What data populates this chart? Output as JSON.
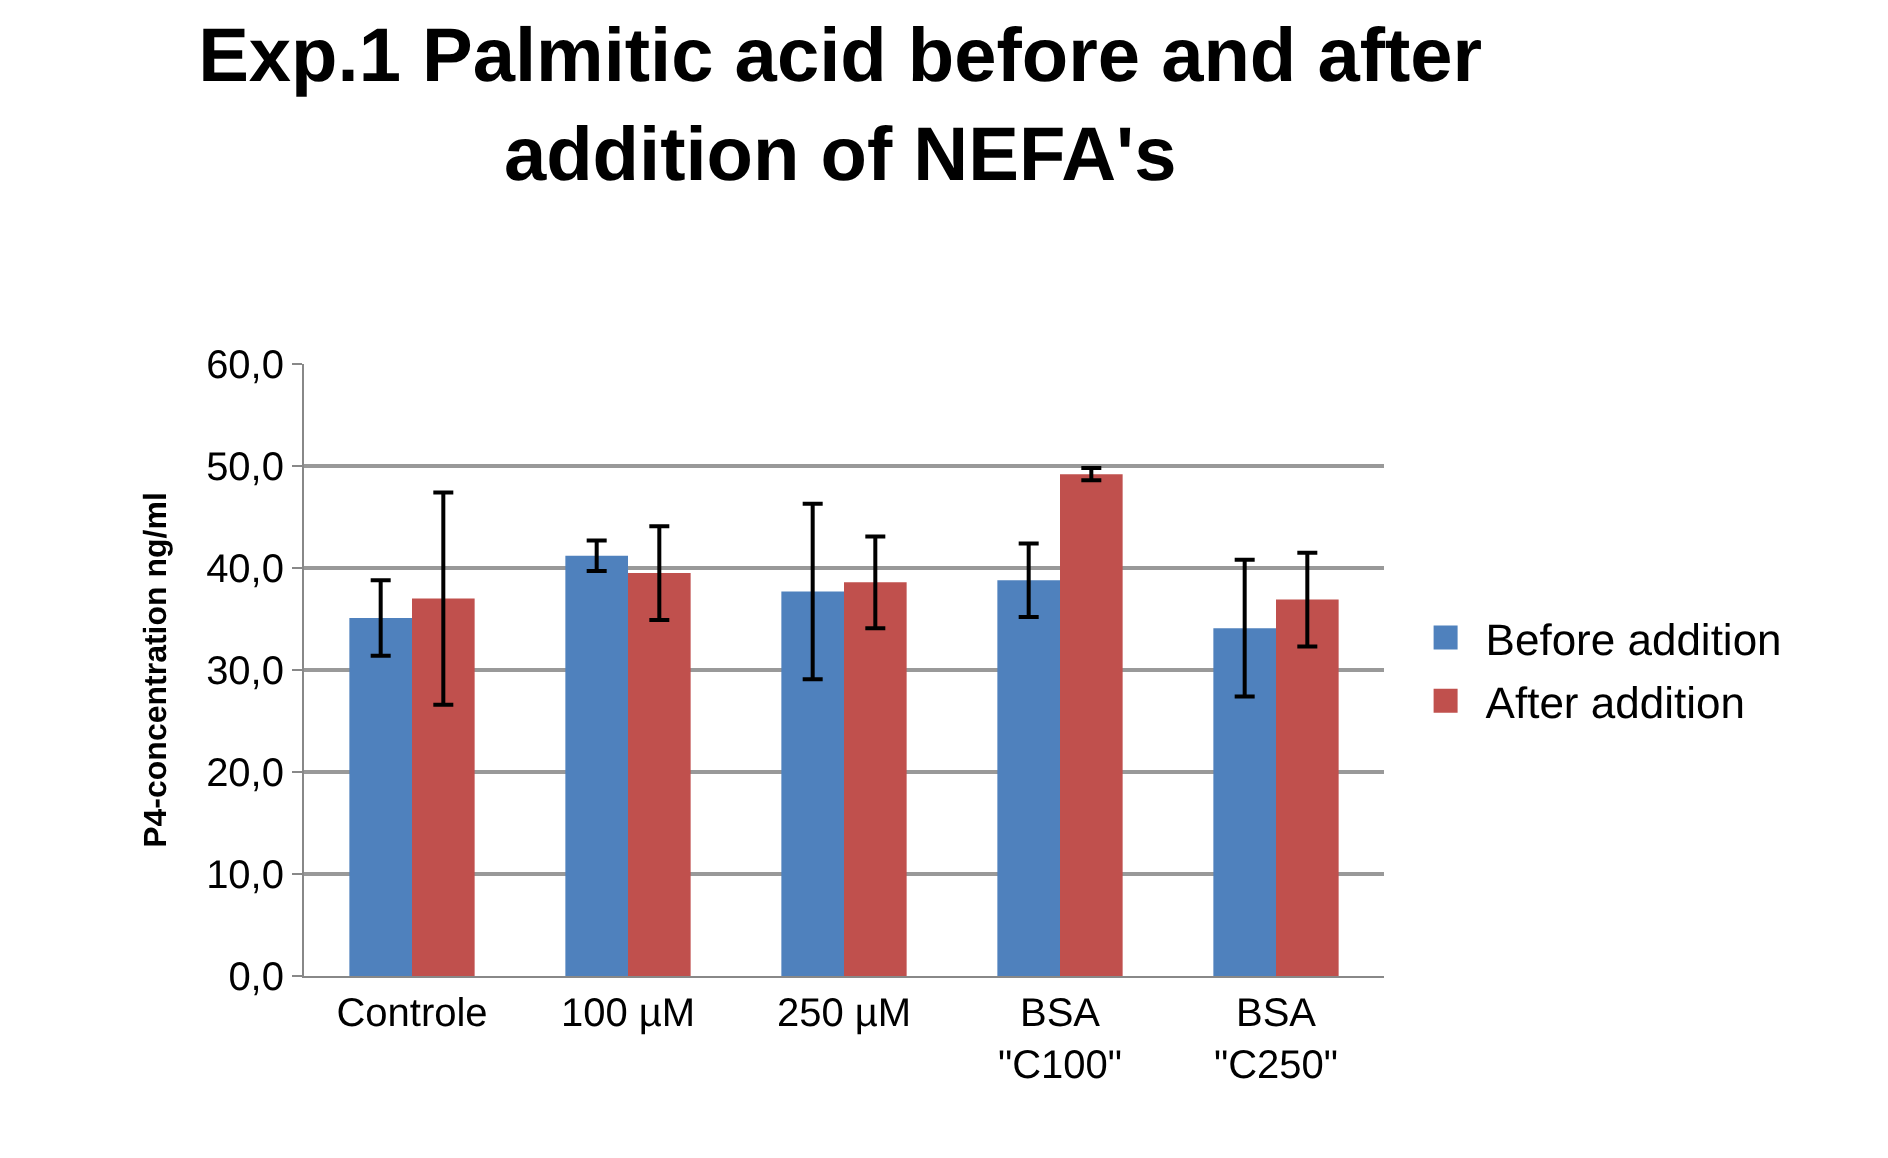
{
  "chart_data": {
    "type": "bar",
    "title": "Exp.1 Palmitic acid before and after addition of NEFA's",
    "ylabel": "P4-concentration ng/ml",
    "categories": [
      "Controle",
      "100 µM",
      "250 µM",
      "BSA\n\"C100\"",
      "BSA\n\"C250\""
    ],
    "series": [
      {
        "name": "Before addition",
        "color": "#4f81bd",
        "values": [
          35.1,
          41.2,
          37.7,
          38.8,
          34.1
        ],
        "errors": [
          3.7,
          1.5,
          8.6,
          3.6,
          6.7
        ]
      },
      {
        "name": "After addition",
        "color": "#c0504d",
        "values": [
          37.0,
          39.5,
          38.6,
          49.2,
          36.9
        ],
        "errors": [
          10.4,
          4.6,
          4.5,
          0.6,
          4.6
        ]
      }
    ],
    "ylim": [
      0,
      60
    ],
    "yticks": [
      {
        "value": 0,
        "label": "0,0"
      },
      {
        "value": 10,
        "label": "10,0"
      },
      {
        "value": 20,
        "label": "20,0"
      },
      {
        "value": 30,
        "label": "30,0"
      },
      {
        "value": 40,
        "label": "40,0"
      },
      {
        "value": 50,
        "label": "50,0"
      },
      {
        "value": 60,
        "label": "60,0"
      }
    ],
    "grid": "y",
    "legend": "right"
  }
}
